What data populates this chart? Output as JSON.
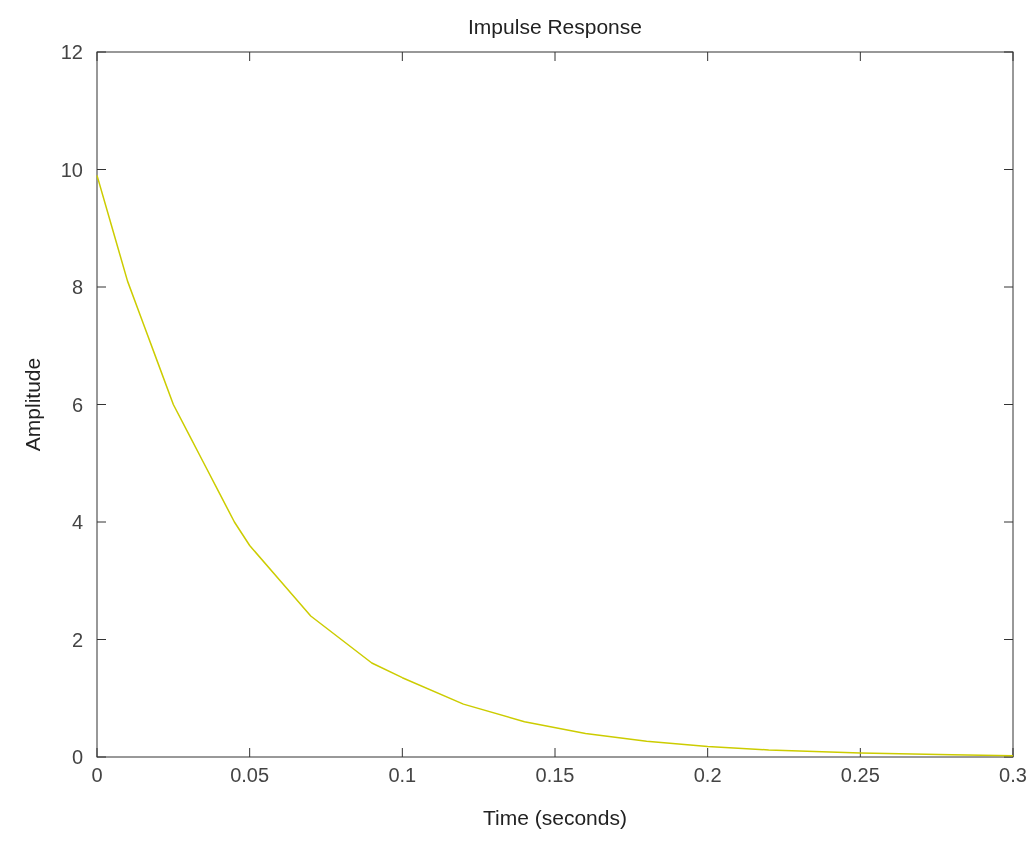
{
  "chart_data": {
    "type": "line",
    "title": "Impulse Response",
    "xlabel": "Time (seconds)",
    "ylabel": "Amplitude",
    "x": [
      0,
      0.005,
      0.01,
      0.015,
      0.02,
      0.025,
      0.03,
      0.035,
      0.04,
      0.045,
      0.05,
      0.06,
      0.07,
      0.08,
      0.09,
      0.1,
      0.12,
      0.14,
      0.16,
      0.18,
      0.2,
      0.22,
      0.25,
      0.28,
      0.3
    ],
    "series": [
      {
        "color": "#cccc00",
        "values": [
          9.9,
          9.0,
          8.1,
          7.4,
          6.7,
          6.0,
          5.5,
          5.0,
          4.5,
          4.0,
          3.6,
          3.0,
          2.4,
          2.0,
          1.6,
          1.35,
          0.9,
          0.6,
          0.4,
          0.27,
          0.18,
          0.12,
          0.07,
          0.04,
          0.02
        ]
      }
    ],
    "xlim": [
      0,
      0.3
    ],
    "xticks": [
      0,
      0.05,
      0.1,
      0.15,
      0.2,
      0.25,
      0.3
    ],
    "ylim": [
      0,
      12
    ],
    "yticks": [
      0,
      2,
      4,
      6,
      8,
      10,
      12
    ]
  }
}
